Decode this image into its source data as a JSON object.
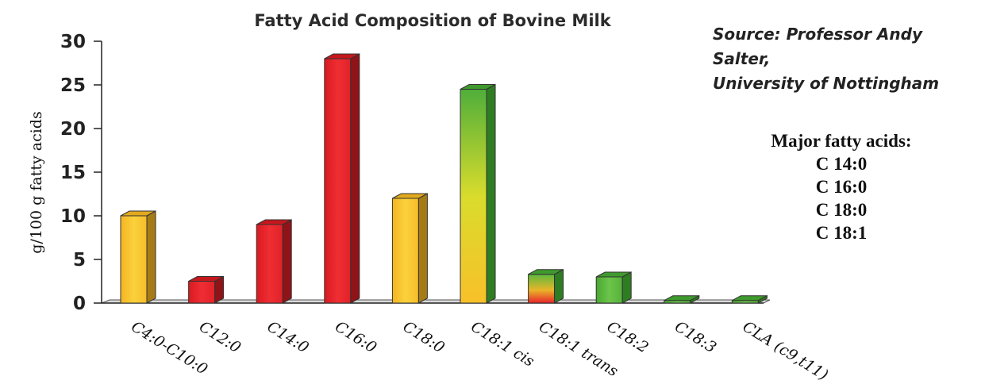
{
  "chart_data": {
    "type": "bar",
    "title": "Fatty Acid Composition of Bovine Milk",
    "xlabel": "",
    "ylabel": "g/100 g fatty acids",
    "ylim": [
      0,
      30
    ],
    "yticks": [
      0,
      5,
      10,
      15,
      20,
      25,
      30
    ],
    "grid": false,
    "categories": [
      "C4:0-C10:0",
      "C12:0",
      "C14:0",
      "C16:0",
      "C18:0",
      "C18:1 cis",
      "C18:1 trans",
      "C18:2",
      "C18:3",
      "CLA (c9,t11)"
    ],
    "values": [
      10,
      2.5,
      9,
      28,
      12,
      24.5,
      3.3,
      3,
      0.3,
      0.3
    ],
    "bar_colors": [
      "#f8c02a",
      "#e8232a",
      "#e8232a",
      "#e8232a",
      "#f8c02a",
      "yellow-green gradient",
      "green-red gradient",
      "#5cb83e",
      "#5cb83e",
      "#5cb83e"
    ]
  },
  "source_note": {
    "line1": "Source: Professor Andy Salter,",
    "line2": "University of Nottingham"
  },
  "major_fatty_acids": {
    "heading": "Major fatty acids:",
    "items": [
      "C 14:0",
      "C 16:0",
      "C 18:0",
      "C 18:1"
    ]
  }
}
